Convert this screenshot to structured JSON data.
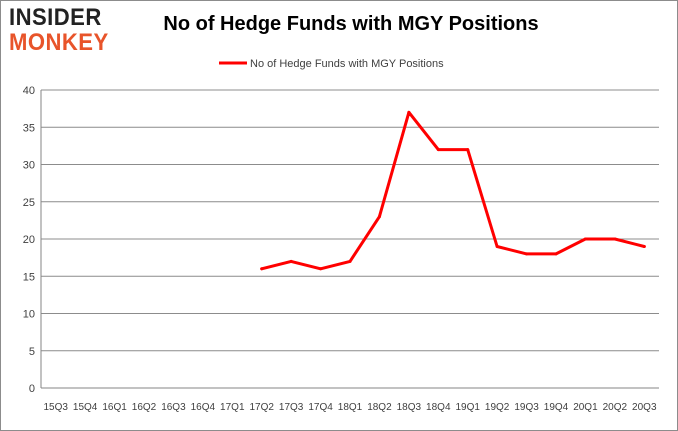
{
  "logo": {
    "line1": "INSIDER",
    "line2": "MONKEY"
  },
  "chart_data": {
    "type": "line",
    "title": "No of Hedge Funds with MGY Positions",
    "xlabel": "",
    "ylabel": "",
    "categories": [
      "15Q3",
      "15Q4",
      "16Q1",
      "16Q2",
      "16Q3",
      "16Q4",
      "17Q1",
      "17Q2",
      "17Q3",
      "17Q4",
      "18Q1",
      "18Q2",
      "18Q3",
      "18Q4",
      "19Q1",
      "19Q2",
      "19Q3",
      "19Q4",
      "20Q1",
      "20Q2",
      "20Q3"
    ],
    "series": [
      {
        "name": "No of Hedge Funds with MGY Positions",
        "color": "#ff0000",
        "values": [
          null,
          null,
          null,
          null,
          null,
          null,
          null,
          16,
          17,
          16,
          17,
          23,
          37,
          32,
          32,
          19,
          18,
          18,
          20,
          20,
          19
        ]
      }
    ],
    "ylim": [
      0,
      40
    ],
    "yticks": [
      0,
      5,
      10,
      15,
      20,
      25,
      30,
      35,
      40
    ],
    "grid": true,
    "legend_position": "top-center"
  }
}
